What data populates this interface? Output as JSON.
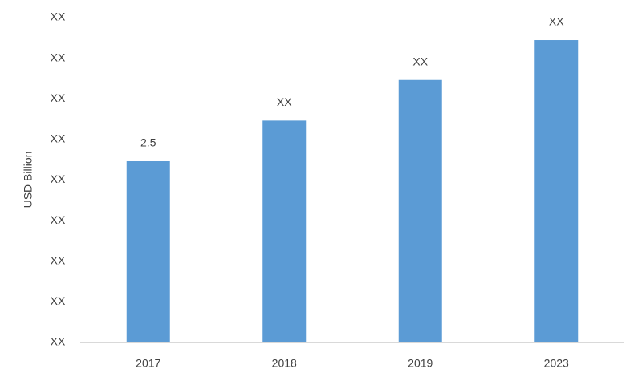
{
  "chart_data": {
    "type": "bar",
    "y_label": "USD Billion",
    "categories": [
      "2017",
      "2018",
      "2019",
      "2023"
    ],
    "values": [
      2.5,
      3.06,
      3.62,
      4.17
    ],
    "value_labels": [
      "2.5",
      "XX",
      "XX",
      "XX"
    ],
    "color": "#5b9bd5",
    "ylim": [
      0,
      4.48
    ],
    "yticks": [
      {
        "value": 0,
        "label": "XX"
      },
      {
        "value": 0.56,
        "label": "XX"
      },
      {
        "value": 1.12,
        "label": "XX"
      },
      {
        "value": 1.68,
        "label": "XX"
      },
      {
        "value": 2.24,
        "label": "XX"
      },
      {
        "value": 2.8,
        "label": "XX"
      },
      {
        "value": 3.36,
        "label": "XX"
      },
      {
        "value": 3.92,
        "label": "XX"
      },
      {
        "value": 4.48,
        "label": "XX"
      }
    ],
    "grid": false
  }
}
